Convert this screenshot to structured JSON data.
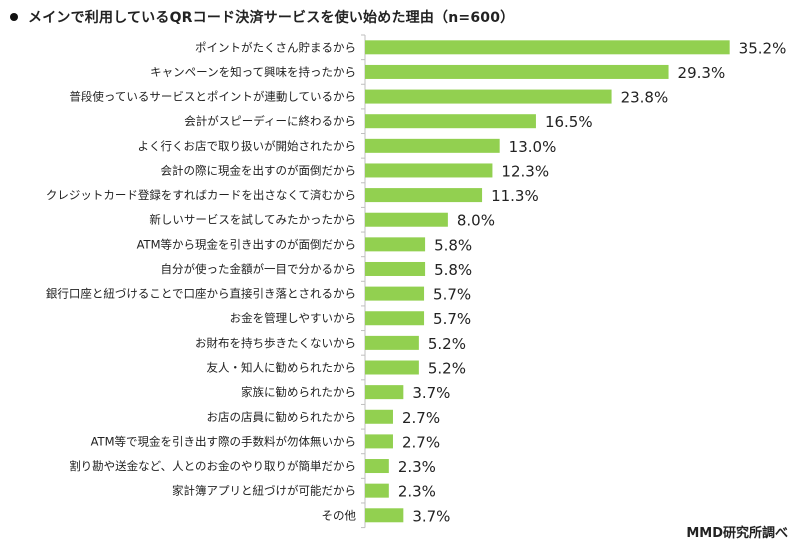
{
  "chart_data": {
    "type": "bar",
    "orientation": "horizontal",
    "title": "メインで利用しているQRコード決済サービスを使い始めた理由（n=600）",
    "categories": [
      "ポイントがたくさん貯まるから",
      "キャンペーンを知って興味を持ったから",
      "普段使っているサービスとポイントが連動しているから",
      "会計がスピーディーに終わるから",
      "よく行くお店で取り扱いが開始されたから",
      "会計の際に現金を出すのが面倒だから",
      "クレジットカード登録をすればカードを出さなくて済むから",
      "新しいサービスを試してみたかったから",
      "ATM等から現金を引き出すのが面倒だから",
      "自分が使った金額が一目で分かるから",
      "銀行口座と紐づけることで口座から直接引き落とされるから",
      "お金を管理しやすいから",
      "お財布を持ち歩きたくないから",
      "友人・知人に勧められたから",
      "家族に勧められたから",
      "お店の店員に勧められたから",
      "ATM等で現金を引き出す際の手数料が勿体無いから",
      "割り勘や送金など、人とのお金のやり取りが簡単だから",
      "家計簿アプリと紐づけが可能だから",
      "その他"
    ],
    "values": [
      35.2,
      29.3,
      23.8,
      16.5,
      13.0,
      12.3,
      11.3,
      8.0,
      5.8,
      5.8,
      5.7,
      5.7,
      5.2,
      5.2,
      3.7,
      2.7,
      2.7,
      2.3,
      2.3,
      3.7
    ],
    "value_labels": [
      "35.2%",
      "29.3%",
      "23.8%",
      "16.5%",
      "13.0%",
      "12.3%",
      "11.3%",
      "8.0%",
      "5.8%",
      "5.8%",
      "5.7%",
      "5.7%",
      "5.2%",
      "5.2%",
      "3.7%",
      "2.7%",
      "2.7%",
      "2.3%",
      "2.3%",
      "3.7%"
    ],
    "bar_color": "#92d050",
    "axis_color": "#bfbfbf",
    "xlim": [
      0,
      36
    ],
    "grid": false,
    "legend": "none"
  },
  "source_note": "MMD研究所調べ"
}
